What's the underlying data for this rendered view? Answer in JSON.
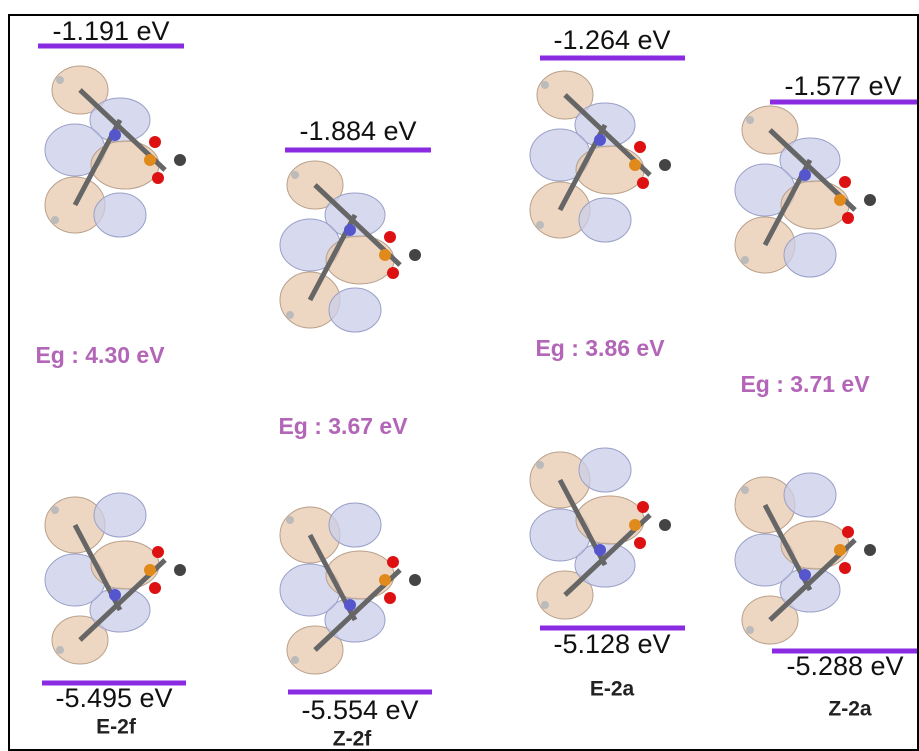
{
  "molecules": [
    {
      "name": "E-2f",
      "lumo": "-1.191 eV",
      "homo": "-5.495 eV",
      "gap": "Eg : 4.30 eV"
    },
    {
      "name": "Z-2f",
      "lumo": "-1.884 eV",
      "homo": "-5.554 eV",
      "gap": "Eg : 3.67 eV"
    },
    {
      "name": "E-2a",
      "lumo": "-1.264 eV",
      "homo": "-5.128 eV",
      "gap": "Eg : 3.86 eV"
    },
    {
      "name": "Z-2a",
      "lumo": "-1.577 eV",
      "homo": "-5.288 eV",
      "gap": "Eg : 3.71 eV"
    }
  ]
}
